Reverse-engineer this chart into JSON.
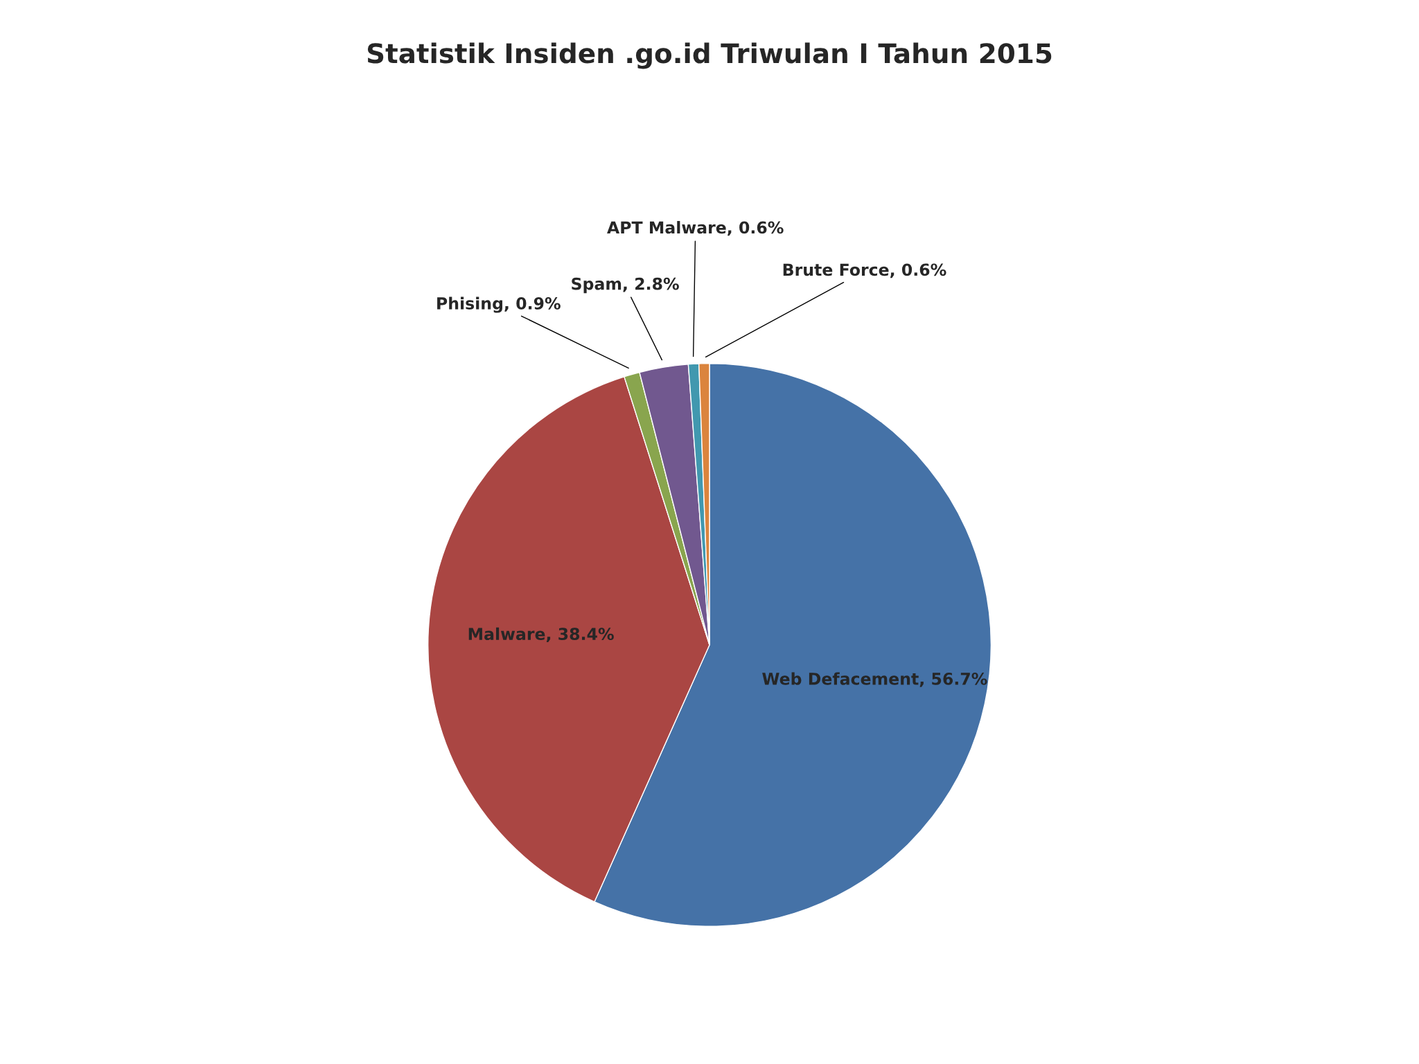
{
  "chart_data": {
    "type": "pie",
    "title": "Statistik Insiden .go.id Triwulan I Tahun 2015",
    "categories": [
      "Web Defacement",
      "Malware",
      "Phising",
      "Spam",
      "APT Malware",
      "Brute Force"
    ],
    "values": [
      56.7,
      38.4,
      0.9,
      2.8,
      0.6,
      0.6
    ],
    "value_labels": [
      ", 56.7%",
      ", 38.4%",
      ", 0.9%",
      ", 2.8%",
      ", 0.6%",
      ", 0.6%"
    ],
    "colors": [
      "#4572a7",
      "#aa4643",
      "#89a54e",
      "#71588f",
      "#4198af",
      "#db843d"
    ],
    "legend": false
  }
}
